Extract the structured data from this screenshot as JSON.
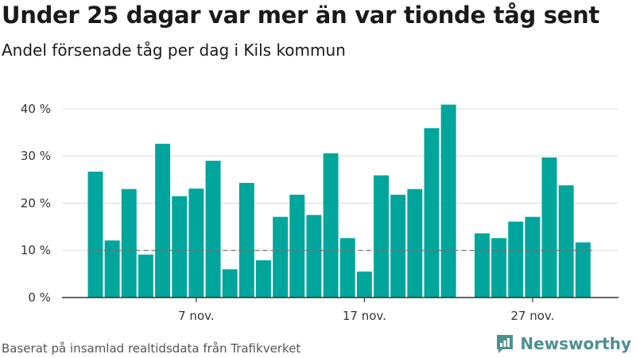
{
  "title": "Under 25 dagar var mer än var tionde tåg sent",
  "subtitle": "Andel försenade tåg per dag i Kils kommun",
  "footer": {
    "source": "Baserat på insamlad realtidsdata från Trafikverket",
    "brand": "Newsworthy"
  },
  "colors": {
    "bar": "#00a59b",
    "grid": "#dddddd",
    "axis": "#333333",
    "reference_line": "#777777",
    "brand": "#4f8f8f"
  },
  "chart_data": {
    "type": "bar",
    "title": "Under 25 dagar var mer än var tionde tåg sent",
    "subtitle": "Andel försenade tåg per dag i Kils kommun",
    "unit": "%",
    "categories": [
      "1 nov.",
      "2 nov.",
      "3 nov.",
      "4 nov.",
      "5 nov.",
      "6 nov.",
      "7 nov.",
      "8 nov.",
      "9 nov.",
      "10 nov.",
      "11 nov.",
      "12 nov.",
      "13 nov.",
      "14 nov.",
      "15 nov.",
      "16 nov.",
      "17 nov.",
      "18 nov.",
      "19 nov.",
      "20 nov.",
      "21 nov.",
      "22 nov.",
      "23 nov.",
      "24 nov.",
      "25 nov.",
      "26 nov.",
      "27 nov.",
      "28 nov.",
      "29 nov.",
      "30 nov."
    ],
    "values": [
      26.7,
      12.1,
      23.0,
      9.1,
      32.6,
      21.5,
      23.1,
      29.0,
      6.0,
      24.3,
      7.9,
      17.1,
      21.8,
      17.5,
      30.6,
      12.6,
      5.5,
      25.9,
      21.8,
      23.0,
      35.9,
      40.9,
      null,
      13.6,
      12.6,
      16.1,
      17.1,
      29.7,
      23.8,
      11.7
    ],
    "ylim": [
      0,
      42
    ],
    "yticks": [
      0,
      10,
      20,
      30,
      40
    ],
    "ytick_labels": [
      "0 %",
      "10 %",
      "20 %",
      "30 %",
      "40 %"
    ],
    "xtick_labels": [
      {
        "category": "7 nov.",
        "label": "7 nov."
      },
      {
        "category": "17 nov.",
        "label": "17 nov."
      },
      {
        "category": "27 nov.",
        "label": "27 nov."
      }
    ],
    "reference_line": {
      "value": 10,
      "style": "dashed"
    },
    "grid": true,
    "legend": false
  }
}
